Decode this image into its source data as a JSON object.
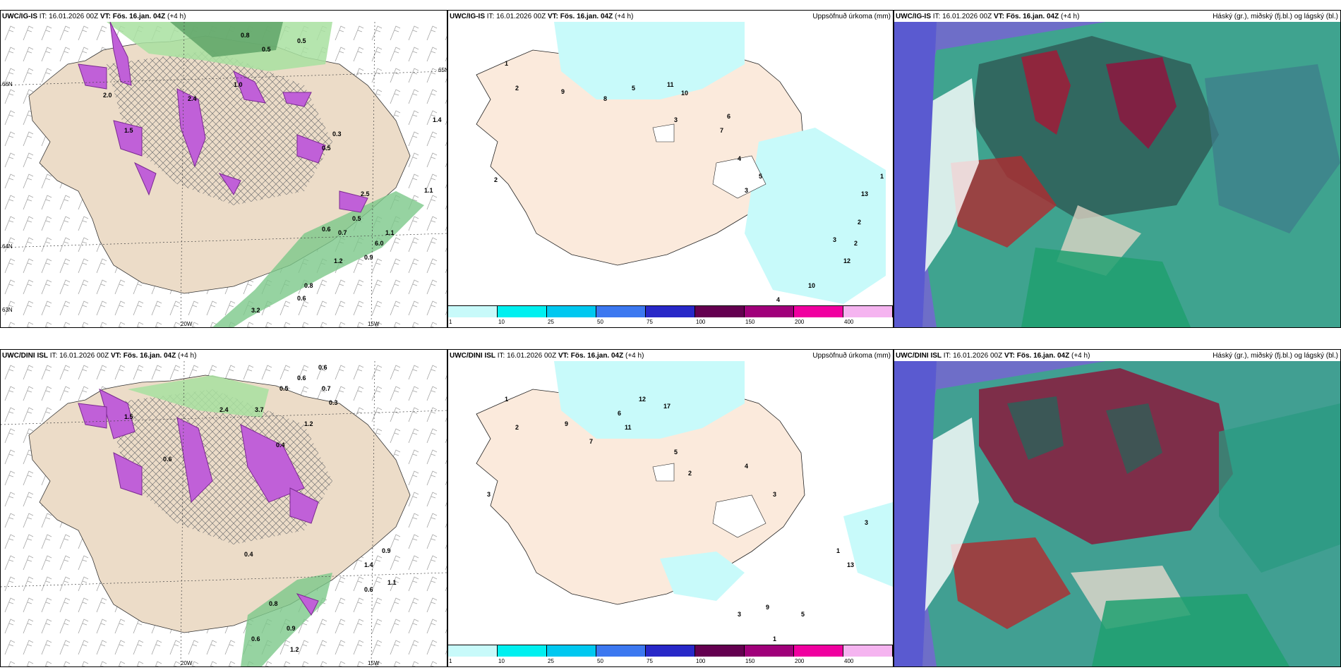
{
  "panels": {
    "top_left": {
      "model": "UWC/IG-IS",
      "it": "IT: 16.01.2026 00Z",
      "vt_label": "VT:",
      "vt_value": "Fös. 16.jan. 04Z",
      "lead": "(+4 h)"
    },
    "top_mid": {
      "model": "UWC/IG-IS",
      "it": "IT: 16.01.2026 00Z",
      "vt_label": "VT:",
      "vt_value": "Fös. 16.jan. 04Z",
      "lead": "(+4 h)",
      "right_title": "Uppsöfnuð úrkoma (mm)"
    },
    "top_right": {
      "model": "UWC/IG-IS",
      "it": "IT: 16.01.2026 00Z",
      "vt_label": "VT:",
      "vt_value": "Fös. 16.jan. 04Z",
      "lead": "(+4 h)",
      "right_title": "Háský (gr.), miðský (fj.bl.) og lágský (bl.)"
    },
    "bot_left": {
      "model": "UWC/DINI ISL",
      "it": "IT: 16.01.2026 00Z",
      "vt_label": "VT:",
      "vt_value": "Fös. 16.jan. 04Z",
      "lead": "(+4 h)"
    },
    "bot_mid": {
      "model": "UWC/DINI ISL",
      "it": "IT: 16.01.2026 00Z",
      "vt_label": "VT:",
      "vt_value": "Fös. 16.jan. 04Z",
      "lead": "(+4 h)",
      "right_title": "Uppsöfnuð úrkoma (mm)"
    },
    "bot_right": {
      "model": "UWC/DINI ISL",
      "it": "IT: 16.01.2026 00Z",
      "vt_label": "VT:",
      "vt_value": "Fös. 16.jan. 04Z",
      "lead": "(+4 h)",
      "right_title": "Háský (gr.), miðský (fj.bl.) og lágský (bl.)"
    }
  },
  "coords": {
    "lon20": "20W",
    "lon15": "15W",
    "lat66": "66N",
    "lat64": "64N",
    "lat65": "65N",
    "lat63": "63N"
  },
  "legend": {
    "ticks": [
      "1",
      "10",
      "25",
      "50",
      "75",
      "100",
      "150",
      "200",
      "400"
    ],
    "colors": [
      "#c8fafa",
      "#00f0f0",
      "#00c8f0",
      "#3c78f0",
      "#2828c8",
      "#640050",
      "#a0007a",
      "#f000a0",
      "#f5b4f0"
    ]
  },
  "top_left_values": [
    "0.8",
    "0.5",
    "0.5",
    "2.0",
    "1.5",
    "2.4",
    "1.0",
    "0.5",
    "0.3",
    "1.4",
    "2.5",
    "1.1",
    "0.6",
    "0.7",
    "0.5",
    "1.2",
    "0.9",
    "0.8",
    "0.6",
    "3.2",
    "6.0",
    "1.1"
  ],
  "top_mid_values": [
    "2",
    "1",
    "2",
    "9",
    "8",
    "5",
    "11",
    "10",
    "3",
    "7",
    "6",
    "4",
    "5",
    "3",
    "1",
    "2",
    "13",
    "12",
    "10",
    "4",
    "3",
    "2"
  ],
  "bot_left_values": [
    "0.6",
    "0.5",
    "2.4",
    "1.5",
    "3.7",
    "0.6",
    "0.4",
    "1.2",
    "0.9",
    "1.4",
    "0.6",
    "0.8",
    "0.4",
    "1.2",
    "0.6",
    "0.9",
    "1.1",
    "0.3",
    "0.6",
    "0.7"
  ],
  "bot_mid_values": [
    "2",
    "3",
    "1",
    "9",
    "6",
    "11",
    "17",
    "12",
    "7",
    "5",
    "4",
    "3",
    "2",
    "13",
    "3",
    "5",
    "3",
    "1",
    "9",
    "1"
  ]
}
